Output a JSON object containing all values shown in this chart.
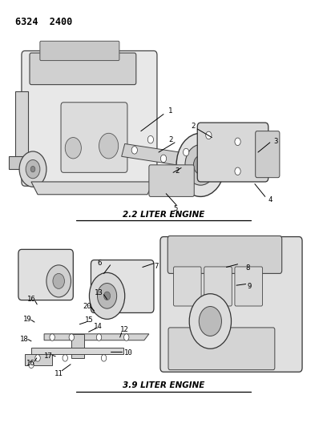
{
  "title_code": "6324  2400",
  "bg_color": "#ffffff",
  "text_color": "#000000",
  "section1_label": "2.2 LITER ENGINE",
  "section2_label": "3.9 LITER ENGINE",
  "figsize": [
    4.08,
    5.33
  ],
  "dpi": 100
}
